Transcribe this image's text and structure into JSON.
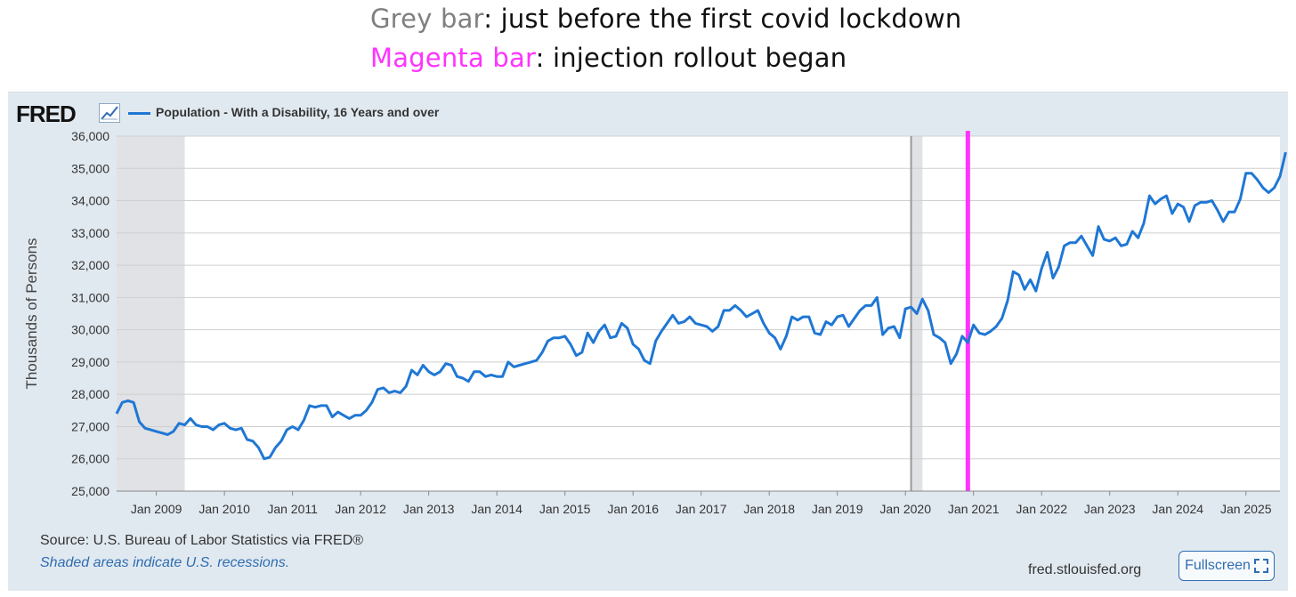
{
  "captions": {
    "grey_key": "Grey bar",
    "grey_text": ": just before the first covid lockdown",
    "magenta_key": "Magenta bar",
    "magenta_text": ": injection rollout began"
  },
  "logo": {
    "text": "FRED",
    "icon": "chart-line-icon"
  },
  "footer": {
    "source": "Source: U.S. Bureau of Labor Statistics via FRED®",
    "shading_note": "Shaded areas indicate U.S. recessions.",
    "site": "fred.stlouisfed.org",
    "fullscreen_label": "Fullscreen",
    "fullscreen_icon": "expand-icon"
  },
  "colors": {
    "series": "#1f77d4",
    "recession": "#e0e2e5",
    "marker_grey": "#999999",
    "marker_magenta": "#ff33ff"
  },
  "chart_data": {
    "type": "line",
    "title": "",
    "xlabel": "",
    "ylabel": "Thousands of Persons",
    "ylim": [
      25000,
      36000
    ],
    "xlim": [
      "2008-06",
      "2025-07"
    ],
    "y_ticks": [
      25000,
      26000,
      27000,
      28000,
      29000,
      30000,
      31000,
      32000,
      33000,
      34000,
      35000,
      36000
    ],
    "y_tick_labels": [
      "25,000",
      "26,000",
      "27,000",
      "28,000",
      "29,000",
      "30,000",
      "31,000",
      "32,000",
      "33,000",
      "34,000",
      "35,000",
      "36,000"
    ],
    "x_ticks": [
      "2009-01",
      "2010-01",
      "2011-01",
      "2012-01",
      "2013-01",
      "2014-01",
      "2015-01",
      "2016-01",
      "2017-01",
      "2018-01",
      "2019-01",
      "2020-01",
      "2021-01",
      "2022-01",
      "2023-01",
      "2024-01",
      "2025-01"
    ],
    "x_tick_labels": [
      "Jan 2009",
      "Jan 2010",
      "Jan 2011",
      "Jan 2012",
      "Jan 2013",
      "Jan 2014",
      "Jan 2015",
      "Jan 2016",
      "Jan 2017",
      "Jan 2018",
      "Jan 2019",
      "Jan 2020",
      "Jan 2021",
      "Jan 2022",
      "Jan 2023",
      "Jan 2024",
      "Jan 2025"
    ],
    "grid": true,
    "legend_placement": "top-left",
    "recessions": [
      [
        "2008-06",
        "2009-06"
      ],
      [
        "2020-02",
        "2020-04"
      ]
    ],
    "annotations": [
      {
        "label": "Grey bar",
        "date": "2020-02",
        "color": "#999999"
      },
      {
        "label": "Magenta bar",
        "date": "2020-12",
        "color": "#ff33ff"
      }
    ],
    "series": [
      {
        "name": "Population - With a Disability, 16 Years and over",
        "color": "#1f77d4",
        "start": "2008-06",
        "frequency": "monthly",
        "values": [
          27400,
          27750,
          27800,
          27750,
          27150,
          26950,
          26900,
          26850,
          26800,
          26750,
          26850,
          27100,
          27050,
          27250,
          27050,
          27000,
          27000,
          26900,
          27050,
          27100,
          26950,
          26900,
          26950,
          26600,
          26550,
          26350,
          26000,
          26050,
          26350,
          26550,
          26900,
          27000,
          26900,
          27200,
          27650,
          27600,
          27650,
          27650,
          27300,
          27450,
          27350,
          27250,
          27350,
          27350,
          27500,
          27750,
          28150,
          28200,
          28050,
          28100,
          28050,
          28250,
          28750,
          28600,
          28900,
          28700,
          28600,
          28700,
          28950,
          28900,
          28550,
          28500,
          28400,
          28700,
          28700,
          28550,
          28600,
          28550,
          28550,
          29000,
          28850,
          28900,
          28950,
          29000,
          29050,
          29300,
          29650,
          29750,
          29750,
          29800,
          29550,
          29200,
          29300,
          29900,
          29600,
          29950,
          30150,
          29750,
          29800,
          30200,
          30050,
          29550,
          29400,
          29050,
          28950,
          29650,
          29950,
          30200,
          30450,
          30200,
          30250,
          30400,
          30200,
          30150,
          30100,
          29950,
          30100,
          30600,
          30600,
          30750,
          30600,
          30400,
          30500,
          30600,
          30200,
          29900,
          29750,
          29400,
          29800,
          30400,
          30300,
          30400,
          30400,
          29900,
          29850,
          30250,
          30150,
          30400,
          30450,
          30100,
          30350,
          30600,
          30750,
          30750,
          31000,
          29850,
          30050,
          30100,
          29750,
          30650,
          30700,
          30500,
          30950,
          30600,
          29850,
          29750,
          29600,
          28950,
          29250,
          29800,
          29600,
          30150,
          29900,
          29850,
          29950,
          30100,
          30350,
          30900,
          31800,
          31700,
          31250,
          31550,
          31200,
          31900,
          32400,
          31600,
          31950,
          32600,
          32700,
          32700,
          32900,
          32600,
          32300,
          33200,
          32800,
          32750,
          32850,
          32600,
          32650,
          33050,
          32850,
          33300,
          34150,
          33900,
          34050,
          34150,
          33600,
          33900,
          33800,
          33350,
          33850,
          33950,
          33950,
          34000,
          33700,
          33350,
          33650,
          33650,
          34050,
          34850,
          34850,
          34650,
          34400,
          34250,
          34400,
          34750,
          35500
        ]
      }
    ]
  }
}
